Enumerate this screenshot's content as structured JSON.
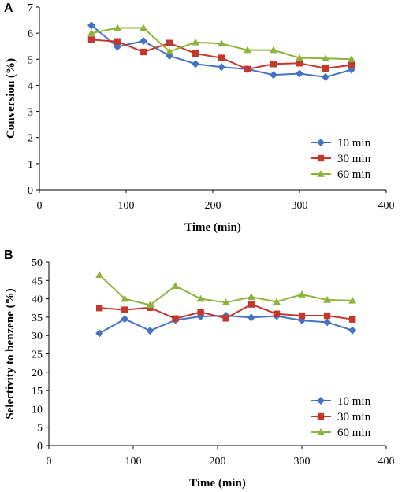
{
  "chart_data": [
    {
      "type": "line",
      "panel_label": "A",
      "xlabel": "Time (min)",
      "ylabel": "Conversion (%)",
      "xlim": [
        0,
        400
      ],
      "ylim": [
        0,
        7
      ],
      "xticks": [
        0,
        100,
        200,
        300,
        400
      ],
      "yticks": [
        0,
        1,
        2,
        3,
        4,
        5,
        6,
        7
      ],
      "grid": false,
      "legend_position": "bottom-right",
      "x": [
        60,
        90,
        120,
        150,
        180,
        210,
        240,
        270,
        300,
        330,
        360
      ],
      "series": [
        {
          "name": "10 min",
          "color": "#4472C4",
          "marker": "diamond",
          "values": [
            6.3,
            5.48,
            5.7,
            5.13,
            4.82,
            4.7,
            4.62,
            4.4,
            4.45,
            4.32,
            4.6
          ]
        },
        {
          "name": "30 min",
          "color": "#C0392B",
          "marker": "square",
          "values": [
            5.75,
            5.68,
            5.28,
            5.62,
            5.22,
            5.05,
            4.62,
            4.82,
            4.85,
            4.65,
            4.78
          ]
        },
        {
          "name": "60 min",
          "color": "#8DB33A",
          "marker": "triangle",
          "values": [
            6.0,
            6.2,
            6.2,
            5.3,
            5.65,
            5.6,
            5.35,
            5.35,
            5.05,
            5.03,
            5.0
          ]
        }
      ]
    },
    {
      "type": "line",
      "panel_label": "B",
      "xlabel": "Time (min)",
      "ylabel": "Selectivity to benzene   (%)",
      "xlim": [
        0,
        400
      ],
      "ylim": [
        0,
        50
      ],
      "xticks": [
        0,
        100,
        200,
        300,
        400
      ],
      "yticks": [
        0,
        5,
        10,
        15,
        20,
        25,
        30,
        35,
        40,
        45,
        50
      ],
      "grid": false,
      "legend_position": "bottom-right",
      "x": [
        60,
        90,
        120,
        150,
        180,
        210,
        240,
        270,
        300,
        330,
        360
      ],
      "series": [
        {
          "name": "10 min",
          "color": "#4472C4",
          "marker": "diamond",
          "values": [
            30.6,
            34.5,
            31.3,
            34.2,
            35.2,
            35.4,
            34.9,
            35.3,
            34.1,
            33.6,
            31.4
          ]
        },
        {
          "name": "30 min",
          "color": "#C0392B",
          "marker": "square",
          "values": [
            37.5,
            37.0,
            37.6,
            34.6,
            36.4,
            34.7,
            38.5,
            35.9,
            35.4,
            35.4,
            34.4
          ]
        },
        {
          "name": "60 min",
          "color": "#8DB33A",
          "marker": "triangle",
          "values": [
            46.5,
            40.0,
            38.3,
            43.5,
            40.0,
            39.0,
            40.5,
            39.2,
            41.2,
            39.7,
            39.5
          ]
        }
      ]
    }
  ]
}
